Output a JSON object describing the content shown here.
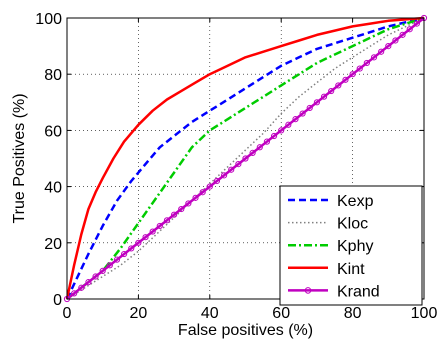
{
  "chart_data": {
    "type": "line",
    "title": "",
    "xlabel": "False positives (%)",
    "ylabel": "True Positives (%)",
    "xlim": [
      0,
      100
    ],
    "ylim": [
      0,
      100
    ],
    "xticks": [
      0,
      20,
      40,
      60,
      80,
      100
    ],
    "yticks": [
      0,
      20,
      40,
      60,
      80,
      100
    ],
    "grid": true,
    "legend_position": "bottom-right",
    "series": [
      {
        "name": "Kexp",
        "color": "#0000ff",
        "style": "dashed",
        "points": [
          [
            0,
            0
          ],
          [
            3,
            8
          ],
          [
            6,
            16
          ],
          [
            10,
            26
          ],
          [
            14,
            35
          ],
          [
            18,
            42
          ],
          [
            22,
            48
          ],
          [
            26,
            54
          ],
          [
            30,
            58
          ],
          [
            35,
            63
          ],
          [
            40,
            67
          ],
          [
            45,
            71
          ],
          [
            50,
            75
          ],
          [
            55,
            79
          ],
          [
            60,
            83
          ],
          [
            65,
            86
          ],
          [
            70,
            89
          ],
          [
            75,
            91
          ],
          [
            80,
            93
          ],
          [
            85,
            95
          ],
          [
            90,
            97
          ],
          [
            95,
            98.5
          ],
          [
            100,
            100
          ]
        ]
      },
      {
        "name": "Kloc",
        "color": "#808080",
        "style": "dotted",
        "points": [
          [
            0,
            0
          ],
          [
            5,
            4
          ],
          [
            10,
            8
          ],
          [
            15,
            12
          ],
          [
            20,
            17
          ],
          [
            25,
            23
          ],
          [
            30,
            29
          ],
          [
            35,
            35
          ],
          [
            40,
            41
          ],
          [
            45,
            47
          ],
          [
            50,
            53
          ],
          [
            55,
            59
          ],
          [
            60,
            66
          ],
          [
            65,
            72
          ],
          [
            70,
            77
          ],
          [
            75,
            82
          ],
          [
            80,
            86
          ],
          [
            85,
            90
          ],
          [
            90,
            94
          ],
          [
            95,
            97
          ],
          [
            100,
            100
          ]
        ]
      },
      {
        "name": "Kphy",
        "color": "#00cc00",
        "style": "dashdot",
        "points": [
          [
            0,
            0
          ],
          [
            5,
            5
          ],
          [
            10,
            10
          ],
          [
            15,
            18
          ],
          [
            20,
            27
          ],
          [
            25,
            36
          ],
          [
            30,
            45
          ],
          [
            35,
            54
          ],
          [
            40,
            60
          ],
          [
            45,
            64
          ],
          [
            50,
            68
          ],
          [
            55,
            72
          ],
          [
            60,
            76
          ],
          [
            65,
            80
          ],
          [
            70,
            84
          ],
          [
            75,
            87
          ],
          [
            80,
            90
          ],
          [
            85,
            93
          ],
          [
            90,
            96
          ],
          [
            95,
            98
          ],
          [
            100,
            100
          ]
        ]
      },
      {
        "name": "Kint",
        "color": "#ff0000",
        "style": "solid",
        "points": [
          [
            0,
            0
          ],
          [
            2,
            12
          ],
          [
            4,
            23
          ],
          [
            6,
            32
          ],
          [
            8,
            38
          ],
          [
            10,
            43
          ],
          [
            13,
            50
          ],
          [
            16,
            56
          ],
          [
            20,
            62
          ],
          [
            24,
            67
          ],
          [
            28,
            71
          ],
          [
            32,
            74
          ],
          [
            36,
            77
          ],
          [
            40,
            80
          ],
          [
            45,
            83
          ],
          [
            50,
            86
          ],
          [
            55,
            88
          ],
          [
            60,
            90
          ],
          [
            65,
            92
          ],
          [
            70,
            94
          ],
          [
            75,
            95.5
          ],
          [
            80,
            97
          ],
          [
            85,
            98
          ],
          [
            90,
            99
          ],
          [
            95,
            99.5
          ],
          [
            100,
            100
          ]
        ]
      },
      {
        "name": "Krand",
        "color": "#c000c0",
        "style": "solid-marker",
        "points": [
          [
            0,
            0
          ],
          [
            100,
            100
          ]
        ]
      }
    ]
  }
}
